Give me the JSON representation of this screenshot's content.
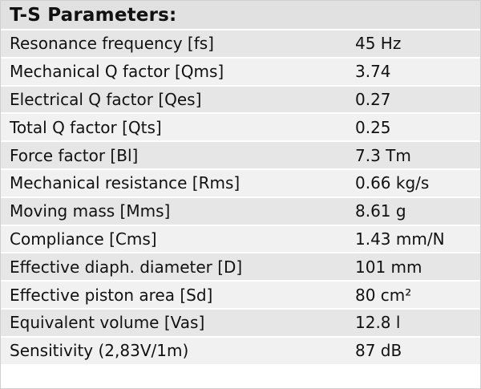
{
  "table": {
    "title": "T-S Parameters:",
    "rows": [
      {
        "name": "Resonance frequency [fs]",
        "value": "45 Hz"
      },
      {
        "name": "Mechanical Q factor [Qms]",
        "value": "3.74"
      },
      {
        "name": "Electrical Q factor [Qes]",
        "value": "0.27"
      },
      {
        "name": "Total Q factor [Qts]",
        "value": "0.25"
      },
      {
        "name": "Force factor [Bl]",
        "value": "7.3 Tm"
      },
      {
        "name": "Mechanical resistance [Rms]",
        "value": "0.66 kg/s"
      },
      {
        "name": "Moving mass [Mms]",
        "value": "8.61 g"
      },
      {
        "name": "Compliance [Cms]",
        "value": "1.43 mm/N"
      },
      {
        "name": "Effective diaph. diameter [D]",
        "value": "101 mm"
      },
      {
        "name": "Effective piston area [Sd]",
        "value": "80 cm²"
      },
      {
        "name": "Equivalent volume [Vas]",
        "value": "12.8 l"
      },
      {
        "name": "Sensitivity (2,83V/1m)",
        "value": "87 dB"
      }
    ]
  }
}
